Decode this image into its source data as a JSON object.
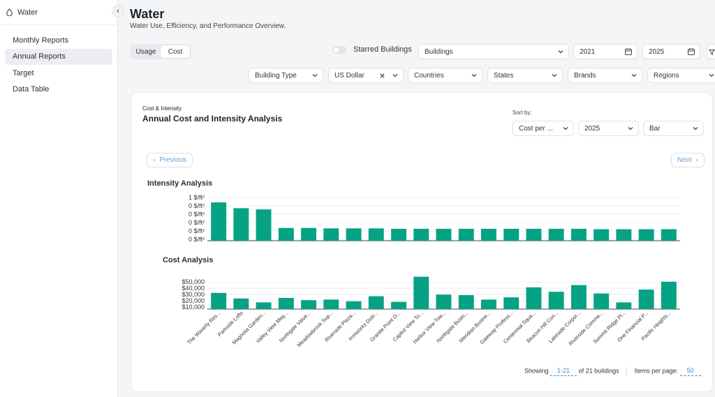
{
  "sidebar": {
    "app_name": "Water",
    "items": [
      {
        "label": "Monthly Reports",
        "active": false
      },
      {
        "label": "Annual Reports",
        "active": true
      },
      {
        "label": "Target",
        "active": false
      },
      {
        "label": "Data Table",
        "active": false
      }
    ]
  },
  "header": {
    "title": "Water",
    "subtitle": "Water Use, Efficiency, and Performance Overview."
  },
  "toggle": {
    "usage": "Usage",
    "cost": "Cost",
    "selected": "Cost"
  },
  "filters": {
    "starred_label": "Starred Buildings",
    "buildings": "Buildings",
    "year_from": "2021",
    "year_to": "2025",
    "building_type": "Building Type",
    "currency": "US Dollar",
    "countries": "Countries",
    "states": "States",
    "brands": "Brands",
    "regions": "Regions"
  },
  "card": {
    "kicker": "Cost & Intensity",
    "title": "Annual Cost and Intensity Analysis",
    "sort_label": "Sort by:",
    "sort_value": "Cost per ...",
    "year": "2025",
    "chart_type": "Bar",
    "prev": "Previous",
    "next": "Next"
  },
  "colors": {
    "bar": "#06a284",
    "accent": "#3b86c8"
  },
  "chart_data": [
    {
      "type": "bar",
      "title": "Intensity Analysis",
      "yticks": [
        "1 $/ft²",
        "0 $/ft²",
        "0 $/ft²",
        "0 $/ft²",
        "0 $/ft²",
        "0 $/ft²"
      ],
      "ylim": [
        0,
        1.05
      ],
      "categories": [
        "The Waverly Res...",
        "Parkside Lofts",
        "Magnolia Garden...",
        "Valley View Meg...",
        "Northgate Value...",
        "Meadowbrook Sup...",
        "Riverside Plaza...",
        "Ironworks Distr...",
        "Granite Point O...",
        "Capitol View To...",
        "Harbor View Tow...",
        "Northgate Busin...",
        "Meridian Busine...",
        "Gateway Profess...",
        "Centennial Squa...",
        "Beacon Hill Con...",
        "Lakeside Corpor...",
        "Riverside Comme...",
        "Summit Ridge Pl...",
        "One Financial P...",
        "Pacific Heights..."
      ],
      "values": [
        0.93,
        0.79,
        0.76,
        0.31,
        0.31,
        0.3,
        0.3,
        0.3,
        0.29,
        0.29,
        0.29,
        0.29,
        0.29,
        0.29,
        0.29,
        0.29,
        0.29,
        0.28,
        0.28,
        0.28,
        0.28
      ]
    },
    {
      "type": "bar",
      "title": "Cost Analysis",
      "yticks": [
        "$50,000",
        "$40,000",
        "$30,000",
        "$20,000",
        "$10,000"
      ],
      "ylim": [
        0,
        60000
      ],
      "categories": [
        "The Waverly Res...",
        "Parkside Lofts",
        "Magnolia Garden...",
        "Valley View Meg...",
        "Northgate Value...",
        "Meadowbrook Sup...",
        "Riverside Plaza...",
        "Ironworks Distr...",
        "Granite Point O...",
        "Capitol View To...",
        "Harbor View Tow...",
        "Northgate Busin...",
        "Meridian Busine...",
        "Gateway Profess...",
        "Centennial Squa...",
        "Beacon Hill Con...",
        "Lakeside Corpor...",
        "Riverside Comme...",
        "Summit Ridge Pl...",
        "One Financial P...",
        "Pacific Heights..."
      ],
      "values": [
        29000,
        19000,
        12000,
        20000,
        16000,
        17000,
        14000,
        23000,
        13000,
        58000,
        26000,
        25000,
        17000,
        21000,
        39000,
        31000,
        43000,
        28000,
        12000,
        35000,
        49000
      ]
    }
  ],
  "footer": {
    "showing": "Showing",
    "range": "1-21",
    "of": "of 21 buildings",
    "items_per_page": "Items per page:",
    "per_page": "50"
  }
}
